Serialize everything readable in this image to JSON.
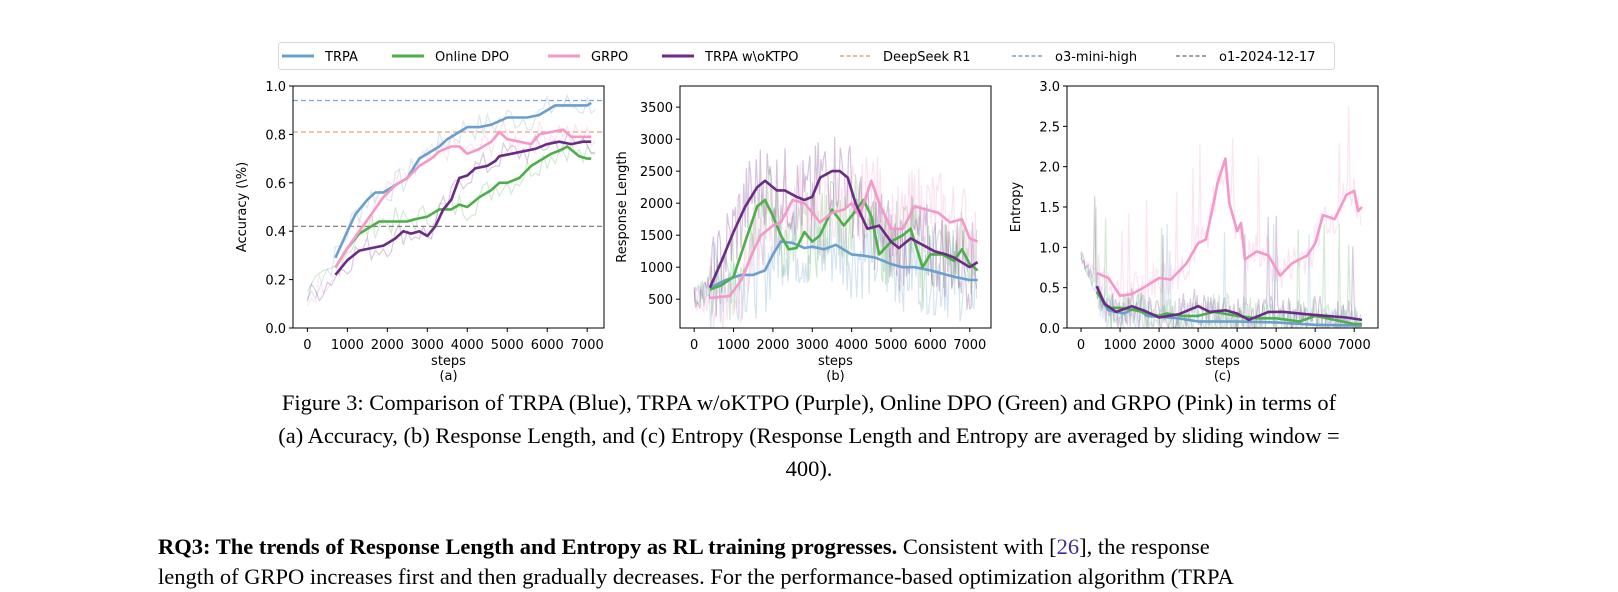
{
  "legend": {
    "items": [
      {
        "label": "TRPA",
        "color": "#6a9fcd",
        "style": "solid"
      },
      {
        "label": "Online DPO",
        "color": "#4daf4a",
        "style": "solid"
      },
      {
        "label": "GRPO",
        "color": "#f597c8",
        "style": "solid"
      },
      {
        "label": "TRPA w\\oKTPO",
        "color": "#6a2a85",
        "style": "solid"
      },
      {
        "label": "DeepSeek R1",
        "color": "#f0a070",
        "style": "dashed"
      },
      {
        "label": "o3-mini-high",
        "color": "#7f9fbf",
        "style": "dashed"
      },
      {
        "label": "o1-2024-12-17",
        "color": "#8a7f7f",
        "style": "dashed"
      }
    ]
  },
  "chart_data": [
    {
      "type": "line",
      "sublabel": "(a)",
      "xlabel": "steps",
      "ylabel": "Accuracy (\\%)",
      "xlim": [
        -360,
        7420
      ],
      "ylim": [
        0,
        1.0
      ],
      "xticks": [
        0,
        1000,
        2000,
        3000,
        4000,
        5000,
        6000,
        7000
      ],
      "yticks": [
        0.0,
        0.2,
        0.4,
        0.6,
        0.8,
        1.0
      ],
      "ytick_labels": [
        "0.0",
        "0.2",
        "0.4",
        "0.6",
        "0.8",
        "1.0"
      ],
      "reference_lines": [
        {
          "name": "o3-mini-high",
          "y": 0.94,
          "color": "#7aa6d0"
        },
        {
          "name": "DeepSeek R1",
          "y": 0.81,
          "color": "#f0a070"
        },
        {
          "name": "o1-2024-12-17",
          "y": 0.42,
          "color": "#8a7f7f"
        }
      ],
      "series": [
        {
          "name": "TRPA",
          "color": "#6a9fcd",
          "x": [
            700,
            1000,
            1200,
            1500,
            1700,
            1900,
            2100,
            2300,
            2500,
            2800,
            3000,
            3300,
            3500,
            3800,
            4000,
            4300,
            4600,
            5000,
            5500,
            5800,
            6200,
            6600,
            7000,
            7100
          ],
          "y": [
            0.29,
            0.4,
            0.47,
            0.53,
            0.56,
            0.56,
            0.58,
            0.6,
            0.62,
            0.7,
            0.72,
            0.75,
            0.78,
            0.81,
            0.83,
            0.83,
            0.84,
            0.87,
            0.87,
            0.88,
            0.92,
            0.92,
            0.92,
            0.93
          ]
        },
        {
          "name": "Online DPO",
          "color": "#4daf4a",
          "x": [
            700,
            1000,
            1300,
            1600,
            1800,
            2100,
            2500,
            2700,
            3000,
            3300,
            3600,
            3800,
            4000,
            4300,
            4600,
            4800,
            5000,
            5300,
            5600,
            5900,
            6100,
            6400,
            6500,
            6800,
            7000,
            7100
          ],
          "y": [
            0.25,
            0.33,
            0.39,
            0.42,
            0.44,
            0.44,
            0.44,
            0.45,
            0.46,
            0.49,
            0.49,
            0.51,
            0.5,
            0.54,
            0.57,
            0.6,
            0.6,
            0.62,
            0.67,
            0.7,
            0.72,
            0.74,
            0.75,
            0.71,
            0.7,
            0.7
          ]
        },
        {
          "name": "GRPO",
          "color": "#f597c8",
          "x": [
            700,
            1000,
            1300,
            1600,
            1900,
            2200,
            2500,
            2800,
            3100,
            3300,
            3600,
            3800,
            4000,
            4300,
            4600,
            4800,
            5000,
            5300,
            5600,
            5800,
            6100,
            6400,
            6600,
            6900,
            7100
          ],
          "y": [
            0.25,
            0.33,
            0.4,
            0.47,
            0.54,
            0.59,
            0.62,
            0.67,
            0.7,
            0.73,
            0.75,
            0.75,
            0.72,
            0.74,
            0.77,
            0.81,
            0.78,
            0.77,
            0.76,
            0.8,
            0.81,
            0.82,
            0.79,
            0.79,
            0.79
          ]
        },
        {
          "name": "TRPA w\\oKTPO",
          "color": "#6a2a85",
          "x": [
            700,
            1000,
            1300,
            1600,
            1900,
            2200,
            2400,
            2600,
            2800,
            3000,
            3200,
            3400,
            3600,
            3800,
            4000,
            4200,
            4500,
            4700,
            4800,
            5100,
            5400,
            5700,
            6000,
            6300,
            6600,
            6900,
            7100
          ],
          "y": [
            0.22,
            0.28,
            0.32,
            0.33,
            0.34,
            0.37,
            0.4,
            0.39,
            0.4,
            0.38,
            0.42,
            0.49,
            0.53,
            0.62,
            0.63,
            0.66,
            0.67,
            0.69,
            0.71,
            0.72,
            0.73,
            0.74,
            0.76,
            0.77,
            0.76,
            0.77,
            0.77
          ]
        }
      ]
    },
    {
      "type": "line",
      "sublabel": "(b)",
      "xlabel": "steps",
      "ylabel": "Response Length",
      "xlim": [
        -360,
        7540
      ],
      "ylim": [
        50,
        3830
      ],
      "xticks": [
        0,
        1000,
        2000,
        3000,
        4000,
        5000,
        6000,
        7000
      ],
      "yticks": [
        500,
        1000,
        1500,
        2000,
        2500,
        3000,
        3500
      ],
      "ytick_labels": [
        "500",
        "1000",
        "1500",
        "2000",
        "2500",
        "3000",
        "3500"
      ],
      "reference_lines": [],
      "series": [
        {
          "name": "TRPA",
          "color": "#6a9fcd",
          "x": [
            400,
            800,
            1200,
            1500,
            1800,
            2000,
            2200,
            2500,
            2800,
            3000,
            3300,
            3600,
            4000,
            4300,
            4600,
            5000,
            5300,
            5600,
            6000,
            6300,
            6600,
            7000,
            7200
          ],
          "y": [
            680,
            800,
            880,
            880,
            950,
            1200,
            1400,
            1380,
            1300,
            1320,
            1280,
            1350,
            1200,
            1180,
            1150,
            1050,
            1000,
            1000,
            950,
            900,
            850,
            800,
            800
          ]
        },
        {
          "name": "Online DPO",
          "color": "#4daf4a",
          "x": [
            400,
            700,
            1000,
            1300,
            1600,
            1800,
            2000,
            2200,
            2400,
            2600,
            2800,
            3000,
            3200,
            3500,
            3800,
            4000,
            4300,
            4500,
            4700,
            5000,
            5300,
            5500,
            5800,
            6000,
            6300,
            6600,
            6800,
            7000,
            7200
          ],
          "y": [
            650,
            720,
            850,
            1400,
            1950,
            2050,
            1800,
            1500,
            1280,
            1300,
            1550,
            1400,
            1500,
            1900,
            1650,
            1800,
            2050,
            1800,
            1200,
            1400,
            1500,
            1600,
            1000,
            1200,
            1200,
            1100,
            1280,
            1050,
            950
          ]
        },
        {
          "name": "GRPO",
          "color": "#f597c8",
          "x": [
            400,
            900,
            1200,
            1500,
            1700,
            2000,
            2200,
            2500,
            2800,
            3000,
            3200,
            3500,
            3800,
            4000,
            4200,
            4500,
            4700,
            5000,
            5300,
            5600,
            5900,
            6200,
            6500,
            6800,
            7000,
            7200
          ],
          "y": [
            520,
            550,
            800,
            1250,
            1500,
            1650,
            1700,
            2050,
            2000,
            1850,
            1700,
            1850,
            1900,
            2000,
            1800,
            2350,
            2000,
            1600,
            1600,
            1950,
            1900,
            1850,
            1700,
            1750,
            1450,
            1400
          ]
        },
        {
          "name": "TRPA w\\oKTPO",
          "color": "#6a2a85",
          "x": [
            400,
            700,
            1000,
            1300,
            1600,
            1800,
            2100,
            2300,
            2600,
            2800,
            3000,
            3200,
            3500,
            3700,
            3900,
            4100,
            4400,
            4700,
            5000,
            5200,
            5500,
            5800,
            6100,
            6400,
            6600,
            7000,
            7200
          ],
          "y": [
            680,
            1100,
            1550,
            1950,
            2250,
            2350,
            2200,
            2200,
            2100,
            2050,
            2100,
            2400,
            2500,
            2500,
            2400,
            2000,
            1600,
            1650,
            1400,
            1300,
            1450,
            1350,
            1250,
            1200,
            1150,
            1000,
            1080
          ]
        }
      ]
    },
    {
      "type": "line",
      "sublabel": "(c)",
      "xlabel": "steps",
      "ylabel": "Entropy",
      "xlim": [
        -360,
        7610
      ],
      "ylim": [
        0,
        3.0
      ],
      "xticks": [
        0,
        1000,
        2000,
        3000,
        4000,
        5000,
        6000,
        7000
      ],
      "yticks": [
        0.0,
        0.5,
        1.0,
        1.5,
        2.0,
        2.5,
        3.0
      ],
      "ytick_labels": [
        "0.0",
        "0.5",
        "1.0",
        "1.5",
        "2.0",
        "2.5",
        "3.0"
      ],
      "reference_lines": [],
      "series": [
        {
          "name": "TRPA",
          "color": "#6a9fcd",
          "x": [
            400,
            700,
            1100,
            1400,
            1700,
            2500,
            3000,
            4000,
            5000,
            6000,
            7200
          ],
          "y": [
            0.45,
            0.22,
            0.18,
            0.25,
            0.15,
            0.12,
            0.08,
            0.08,
            0.07,
            0.04,
            0.03
          ]
        },
        {
          "name": "Online DPO",
          "color": "#4daf4a",
          "x": [
            400,
            700,
            1000,
            1400,
            2000,
            2200,
            2600,
            3000,
            3400,
            4000,
            4500,
            5000,
            5600,
            6000,
            6500,
            7000,
            7200
          ],
          "y": [
            0.45,
            0.25,
            0.25,
            0.22,
            0.15,
            0.18,
            0.15,
            0.15,
            0.2,
            0.15,
            0.12,
            0.12,
            0.08,
            0.15,
            0.1,
            0.05,
            0.05
          ]
        },
        {
          "name": "GRPO",
          "color": "#f597c8",
          "x": [
            400,
            700,
            1000,
            1300,
            1600,
            2000,
            2300,
            2700,
            3000,
            3200,
            3400,
            3500,
            3700,
            3800,
            4000,
            4100,
            4200,
            4500,
            4800,
            5100,
            5400,
            5800,
            6000,
            6200,
            6500,
            6800,
            7000,
            7100,
            7200
          ],
          "y": [
            0.68,
            0.62,
            0.4,
            0.42,
            0.5,
            0.62,
            0.6,
            0.8,
            1.05,
            1.1,
            1.55,
            1.8,
            2.1,
            1.55,
            1.2,
            1.3,
            0.85,
            0.95,
            0.9,
            0.65,
            0.8,
            0.9,
            1.05,
            1.4,
            1.35,
            1.65,
            1.7,
            1.45,
            1.5
          ]
        },
        {
          "name": "TRPA w\\oKTPO",
          "color": "#6a2a85",
          "x": [
            400,
            600,
            900,
            1300,
            1600,
            2000,
            2500,
            3000,
            3300,
            3700,
            4000,
            4300,
            4800,
            5200,
            5800,
            6300,
            6800,
            7200
          ],
          "y": [
            0.52,
            0.3,
            0.2,
            0.27,
            0.22,
            0.13,
            0.17,
            0.27,
            0.2,
            0.22,
            0.18,
            0.1,
            0.2,
            0.2,
            0.17,
            0.15,
            0.13,
            0.1
          ]
        }
      ]
    }
  ],
  "caption": {
    "line1": "Figure 3: Comparison of TRPA (Blue), TRPA w/oKTPO (Purple), Online DPO (Green) and GRPO (Pink) in terms of",
    "line2": "(a) Accuracy, (b) Response Length, and (c) Entropy (Response Length and Entropy are averaged by sliding window =",
    "line3": "400)."
  },
  "paragraph": {
    "heading": "RQ3: The trends of Response Length and Entropy as RL training progresses.",
    "text_before_cite": " Consistent with [",
    "cite": "26",
    "text_after_cite": "], the response",
    "line2": "length of GRPO increases first and then gradually decreases. For the performance-based optimization algorithm (TRPA"
  }
}
